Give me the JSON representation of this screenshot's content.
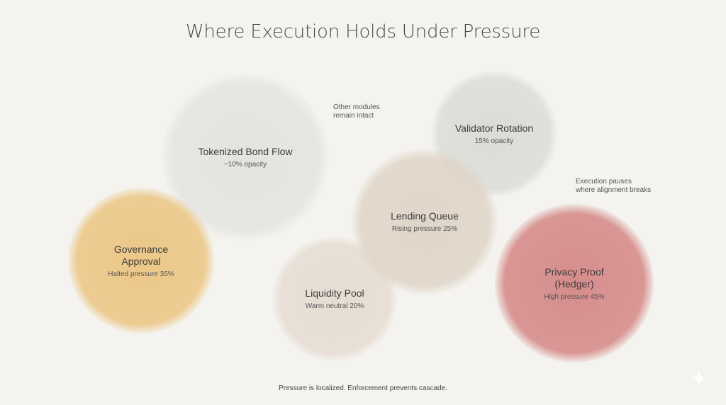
{
  "title": "Where Execution Holds Under Pressure",
  "bubbles": [
    {
      "id": "tokenized",
      "label": "Tokenized Bond Flow",
      "sub": "~10% opacity",
      "color": "#e6e6e3"
    },
    {
      "id": "validator",
      "label": "Validator Rotation",
      "sub": "15% opacity",
      "color": "#dcdfda"
    },
    {
      "id": "governance",
      "label": "Governance\nApproval",
      "sub": "Halted pressure 35%",
      "color": "#ecc98a"
    },
    {
      "id": "lending",
      "label": "Lending Queue",
      "sub": "Rising pressure 25%",
      "color": "#e2d7cb"
    },
    {
      "id": "liquidity",
      "label": "Liquidity Pool",
      "sub": "Warm neutral 20%",
      "color": "#e8e0d6"
    },
    {
      "id": "privacy",
      "label": "Privacy Proof\n(Hedger)",
      "sub": "High pressure 45%",
      "color": "#d99593"
    }
  ],
  "annotations": {
    "modules": "Other modules\nremain intact",
    "pauses": "Execution pauses\nwhere alignment breaks"
  },
  "footer": "Pressure is localized. Enforcement prevents cascade.",
  "icons": {
    "corner": "sparkle-icon"
  }
}
